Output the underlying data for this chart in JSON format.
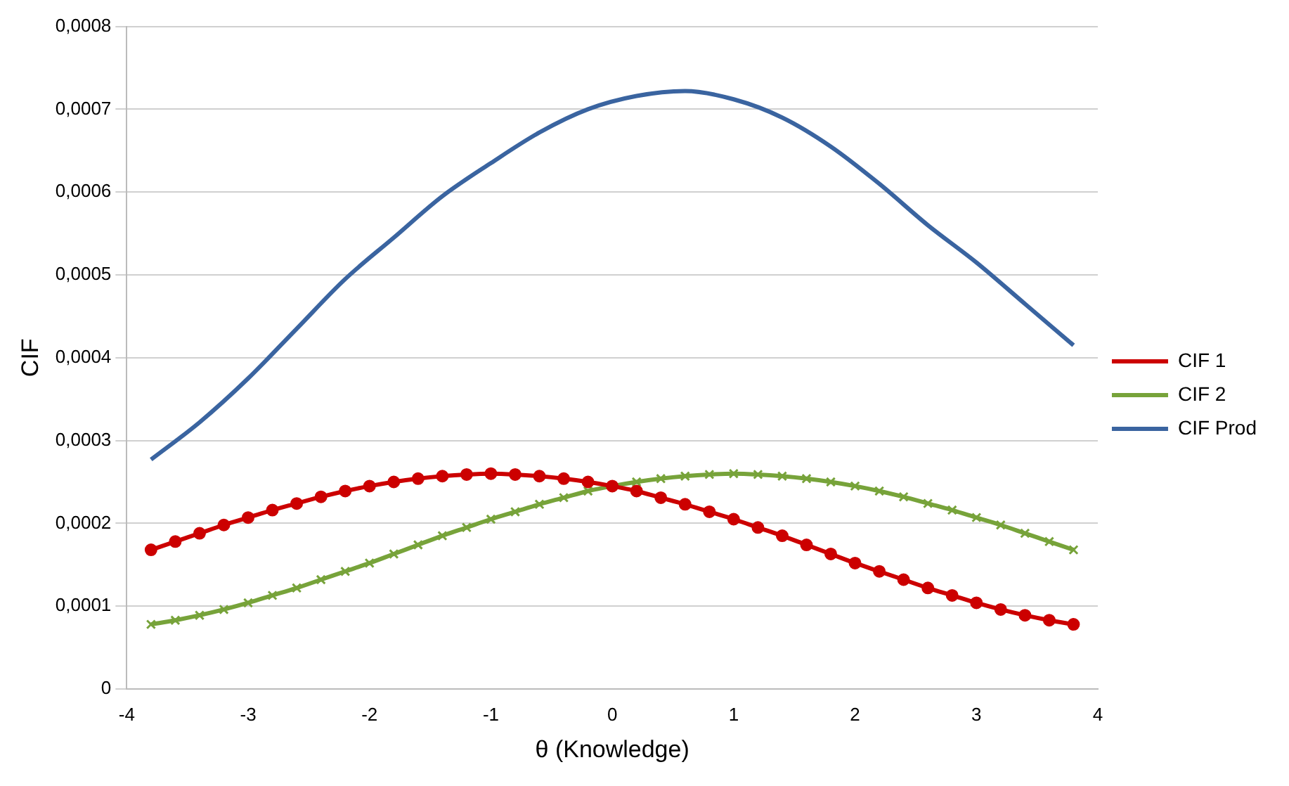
{
  "chart_data": {
    "type": "line",
    "xlabel": "θ (Knowledge)",
    "ylabel": "CIF",
    "xlim": [
      -4,
      4
    ],
    "xticks": [
      -4,
      -3,
      -2,
      -1,
      0,
      1,
      2,
      3,
      4
    ],
    "ylim": [
      0,
      0.0008
    ],
    "yticks": [
      {
        "value": 0,
        "label": "0"
      },
      {
        "value": 0.0001,
        "label": "0,0001"
      },
      {
        "value": 0.0002,
        "label": "0,0002"
      },
      {
        "value": 0.0003,
        "label": "0,0003"
      },
      {
        "value": 0.0004,
        "label": "0,0004"
      },
      {
        "value": 0.0005,
        "label": "0,0005"
      },
      {
        "value": 0.0006,
        "label": "0,0006"
      },
      {
        "value": 0.0007,
        "label": "0,0007"
      },
      {
        "value": 0.0008,
        "label": "0,0008"
      }
    ],
    "grid": "y",
    "legend": "right",
    "x": [
      -3.8,
      -3.6,
      -3.4,
      -3.2,
      -3.0,
      -2.8,
      -2.6,
      -2.4,
      -2.2,
      -2.0,
      -1.8,
      -1.6,
      -1.4,
      -1.2,
      -1.0,
      -0.8,
      -0.6,
      -0.4,
      -0.2,
      0,
      0.2,
      0.4,
      0.6,
      0.8,
      1.0,
      1.2,
      1.4,
      1.6,
      1.8,
      2.0,
      2.2,
      2.4,
      2.6,
      2.8,
      3.0,
      3.2,
      3.4,
      3.6,
      3.8
    ],
    "series": [
      {
        "name": "CIF 1",
        "color": "#cc0000",
        "marker": "circle",
        "values": [
          0.000168,
          0.000178,
          0.000188,
          0.000198,
          0.000207,
          0.000216,
          0.000224,
          0.000232,
          0.000239,
          0.000245,
          0.00025,
          0.000254,
          0.000257,
          0.000259,
          0.00026,
          0.000259,
          0.000257,
          0.000254,
          0.00025,
          0.000245,
          0.000239,
          0.000231,
          0.000223,
          0.000214,
          0.000205,
          0.000195,
          0.000185,
          0.000174,
          0.000163,
          0.000152,
          0.000142,
          0.000132,
          0.000122,
          0.000113,
          0.000104,
          9.6e-05,
          8.9e-05,
          8.3e-05,
          7.8e-05
        ]
      },
      {
        "name": "CIF 2",
        "color": "#77a33a",
        "marker": "cross",
        "values": [
          7.8e-05,
          8.3e-05,
          8.9e-05,
          9.6e-05,
          0.000104,
          0.000113,
          0.000122,
          0.000132,
          0.000142,
          0.000152,
          0.000163,
          0.000174,
          0.000185,
          0.000195,
          0.000205,
          0.000214,
          0.000223,
          0.000231,
          0.000239,
          0.000245,
          0.00025,
          0.000254,
          0.000257,
          0.000259,
          0.00026,
          0.000259,
          0.000257,
          0.000254,
          0.00025,
          0.000245,
          0.000239,
          0.000232,
          0.000224,
          0.000216,
          0.000207,
          0.000198,
          0.000188,
          0.000178,
          0.000168
        ]
      },
      {
        "name": "CIF Prod",
        "color": "#3a64a0",
        "marker": "none",
        "x": [
          -3.8,
          -3.4,
          -3.0,
          -2.6,
          -2.2,
          -1.8,
          -1.4,
          -1.0,
          -0.6,
          -0.2,
          0.2,
          0.6,
          1.0,
          1.4,
          1.8,
          2.2,
          2.6,
          3.0,
          3.4,
          3.8
        ],
        "values": [
          0.000277,
          0.000322,
          0.000375,
          0.000435,
          0.000495,
          0.000545,
          0.000595,
          0.000635,
          0.000672,
          0.0007,
          0.000716,
          0.000722,
          0.000712,
          0.00069,
          0.000655,
          0.00061,
          0.00056,
          0.000515,
          0.000465,
          0.000415
        ]
      }
    ]
  }
}
